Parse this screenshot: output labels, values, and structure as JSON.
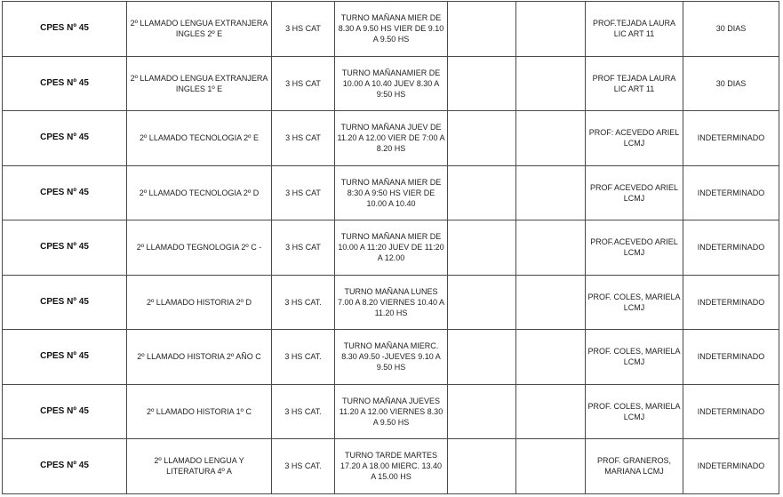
{
  "rows": [
    {
      "school": "CPES Nº 45",
      "subject": "2º LLAMADO LENGUA EXTRANJERA INGLES 2º E",
      "hours": "3 HS CAT",
      "schedule": "TURNO MAÑANA MIER DE 8.30 A 9.50 HS VIER DE 9.10 A 9.50 HS",
      "col5": "",
      "col6": "",
      "teacher": "PROF.TEJADA LAURA LIC ART 11",
      "duration": "30 DIAS"
    },
    {
      "school": "CPES Nº 45",
      "subject": "2º LLAMADO LENGUA EXTRANJERA INGLES 1º E",
      "hours": "3 HS CAT",
      "schedule": "TURNO MAÑANAMIER DE 10.00 A 10.40 JUEV 8.30 A 9:50 HS",
      "col5": "",
      "col6": "",
      "teacher": "PROF TEJADA LAURA LIC ART 11",
      "duration": "30 DIAS"
    },
    {
      "school": "CPES Nº 45",
      "subject": "2º LLAMADO TECNOLOGIA 2º E",
      "hours": "3 HS CAT",
      "schedule": "TURNO MAÑANA JUEV DE 11.20 A 12.00 VIER DE 7:00 A 8.20 HS",
      "col5": "",
      "col6": "",
      "teacher": "PROF: ACEVEDO ARIEL LCMJ",
      "duration": "INDETERMINADO"
    },
    {
      "school": "CPES Nº 45",
      "subject": "2º LLAMADO TECNOLOGIA 2º D",
      "hours": "3 HS CAT",
      "schedule": "TURNO MAÑANA MIER DE 8:30 A 9:50 HS VIER DE 10.00 A 10.40",
      "col5": "",
      "col6": "",
      "teacher": "PROF ACEVEDO ARIEL LCMJ",
      "duration": "INDETERMINADO"
    },
    {
      "school": "CPES Nº 45",
      "subject": "2º LLAMADO TEGNOLOGIA 2º C -",
      "hours": "3 HS CAT",
      "schedule": "TURNO MAÑANA MIER DE 10.00 A 11:20 JUEV DE 11:20 A 12.00",
      "col5": "",
      "col6": "",
      "teacher": "PROF.ACEVEDO ARIEL LCMJ",
      "duration": "INDETERMINADO"
    },
    {
      "school": "CPES Nº 45",
      "subject": "2º LLAMADO HISTORIA 2º D",
      "hours": "3 HS CAT.",
      "schedule": "TURNO MAÑANA LUNES 7.00 A 8.20 VIERNES 10.40 A 11.20 HS",
      "col5": "",
      "col6": "",
      "teacher": "PROF. COLES, MARIELA LCMJ",
      "duration": "INDETERMINADO"
    },
    {
      "school": "CPES Nº 45",
      "subject": "2º LLAMADO HISTORIA 2º AÑO C",
      "hours": "3 HS CAT.",
      "schedule": "TURNO MAÑANA MIERC. 8.30 A9.50 -JUEVES 9.10 A 9.50 HS",
      "col5": "",
      "col6": "",
      "teacher": "PROF. COLES, MARIELA LCMJ",
      "duration": "INDETERMINADO"
    },
    {
      "school": "CPES Nº 45",
      "subject": "2º LLAMADO HISTORIA 1º C",
      "hours": "3 HS CAT.",
      "schedule": "TURNO MAÑANA JUEVES 11.20 A 12.00 VIERNES 8.30 A 9.50 HS",
      "col5": "",
      "col6": "",
      "teacher": "PROF. COLES, MARIELA LCMJ",
      "duration": "INDETERMINADO"
    },
    {
      "school": "CPES Nº 45",
      "subject": "2º LLAMADO LENGUA Y LITERATURA 4º A",
      "hours": "3 HS CAT.",
      "schedule": "TURNO TARDE MARTES 17.20 A 18.00 MIERC. 13.40 A 15.00 HS",
      "col5": "",
      "col6": "",
      "teacher": "PROF. GRANEROS, MARIANA LCMJ",
      "duration": "INDETERMINADO"
    }
  ]
}
